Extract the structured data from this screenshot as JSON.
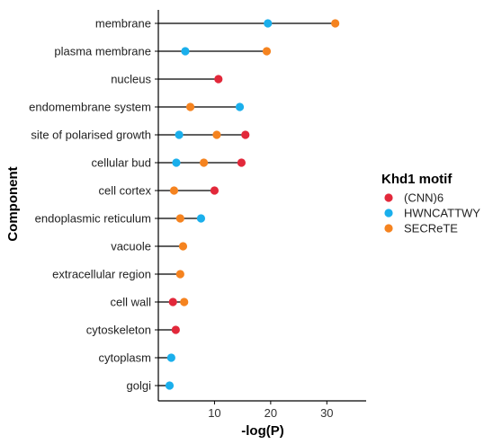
{
  "chart_data": {
    "type": "dot-lollipop",
    "xlabel": "-log(P)",
    "ylabel": "Component",
    "xlim": [
      0,
      37
    ],
    "xticks": [
      10,
      20,
      30
    ],
    "legend": {
      "title": "Khd1 motif",
      "placement": "right"
    },
    "categories": [
      "membrane",
      "plasma membrane",
      "nucleus",
      "endomembrane system",
      "site of polarised growth",
      "cellular bud",
      "cell cortex",
      "endoplasmic reticulum",
      "vacuole",
      "extracellular region",
      "cell wall",
      "cytoskeleton",
      "cytoplasm",
      "golgi"
    ],
    "series": [
      {
        "name": "(CNN)6",
        "color": "#e2283a",
        "values": [
          null,
          null,
          10.7,
          null,
          15.5,
          14.8,
          10.0,
          null,
          null,
          null,
          2.6,
          3.1,
          null,
          null
        ]
      },
      {
        "name": "HWNCATTWY",
        "color": "#1aafec",
        "values": [
          19.5,
          4.8,
          null,
          14.5,
          3.7,
          3.2,
          null,
          7.6,
          null,
          null,
          null,
          null,
          2.3,
          2.0
        ]
      },
      {
        "name": "SECReTE",
        "color": "#f5831f",
        "values": [
          31.5,
          19.3,
          null,
          5.7,
          10.4,
          8.1,
          2.8,
          3.9,
          4.4,
          3.9,
          4.6,
          null,
          null,
          null
        ]
      }
    ]
  }
}
